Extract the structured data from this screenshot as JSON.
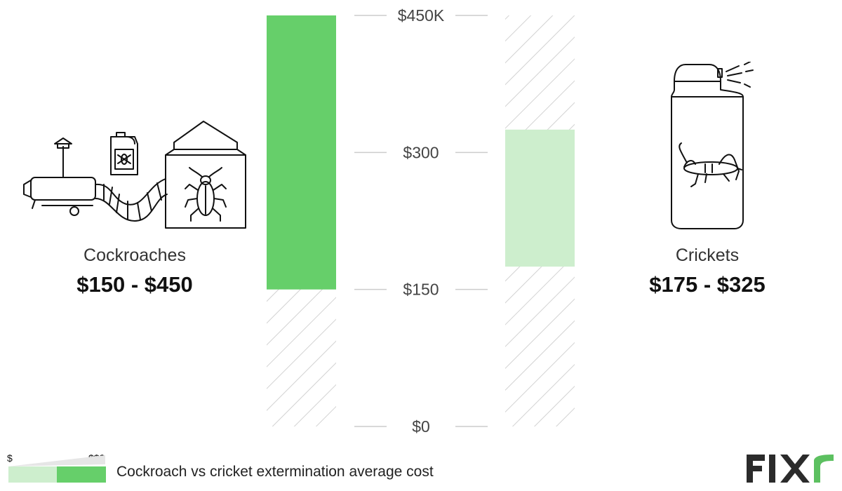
{
  "chart_data": {
    "type": "bar",
    "subtype": "floating-range",
    "title": "",
    "xlabel": "",
    "ylabel": "",
    "ylim": [
      0,
      450
    ],
    "yticks": [
      0,
      150,
      300,
      450
    ],
    "ytick_labels": [
      "$0",
      "$150",
      "$300",
      "$450K"
    ],
    "grid": false,
    "series": [
      {
        "name": "Cockroaches",
        "range_label": "$150 - $450",
        "low": 150,
        "high": 450,
        "color": "#66cf6a"
      },
      {
        "name": "Crickets",
        "range_label": "$175 - $325",
        "low": 175,
        "high": 325,
        "color": "#cdeecd"
      }
    ]
  },
  "legend": {
    "low_label": "$",
    "high_label": "$$$",
    "caption": "Cockroach vs cricket extermination average cost",
    "colors": [
      "#cdeecd",
      "#66cf6a"
    ]
  },
  "colors": {
    "hatch": "#d2d2d2",
    "axis_line": "#cccccc",
    "logo": "#2b2b2b",
    "logo_accent": "#5cc060"
  },
  "icons": [
    "fogger-machine-icon",
    "pesticide-jug-icon",
    "tented-house-icon",
    "cockroach-icon",
    "spray-bottle-icon",
    "cricket-icon",
    "fixr-logo"
  ]
}
